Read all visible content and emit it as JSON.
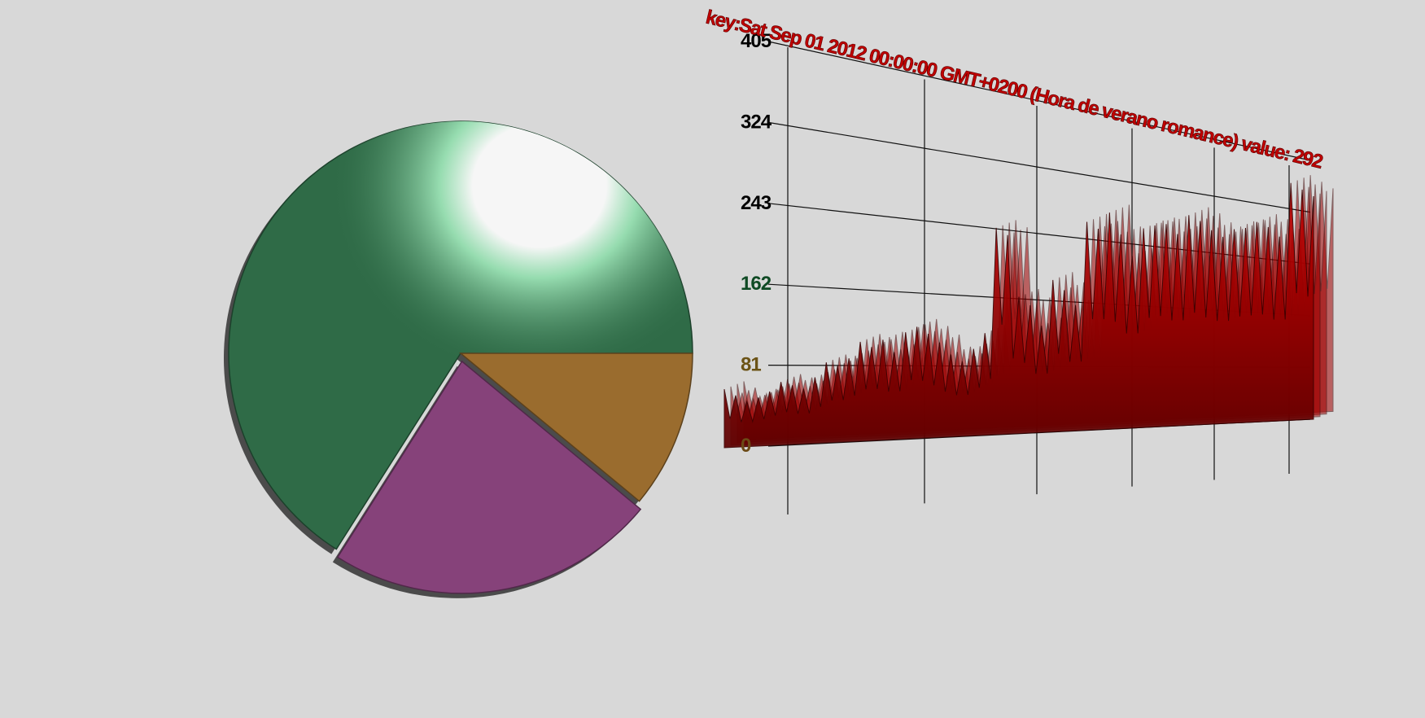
{
  "chart_data": [
    {
      "type": "pie",
      "slices": [
        {
          "value": 66,
          "color": "#2f6b47"
        },
        {
          "value": 23,
          "color": "#86427a"
        },
        {
          "value": 11,
          "color": "#9a6c2e"
        }
      ],
      "exploded_slice_index": 1
    },
    {
      "type": "area",
      "series": [
        {
          "color": "#a10000",
          "values": [
            62,
            55,
            48,
            52,
            58,
            68,
            64,
            60,
            72,
            88,
            84,
            92,
            110,
            104,
            112,
            98,
            120,
            126,
            118,
            108,
            94,
            86,
            100,
            118,
            240,
            232,
            160,
            150,
            126,
            180,
            168,
            150,
            250,
            242,
            262,
            236,
            210,
            244,
            248,
            250,
            238,
            262,
            255,
            244,
            236,
            246,
            248,
            256,
            250,
            238,
            308,
            300,
            292
          ]
        }
      ],
      "ylim": [
        0,
        405
      ],
      "yticks": [
        "0",
        "81",
        "162",
        "243",
        "324",
        "405"
      ],
      "grid": true,
      "annotation": "key:Sat Sep 01 2012 00:00:00 GMT+0200 (Hora de verano romance) value: 292"
    }
  ]
}
